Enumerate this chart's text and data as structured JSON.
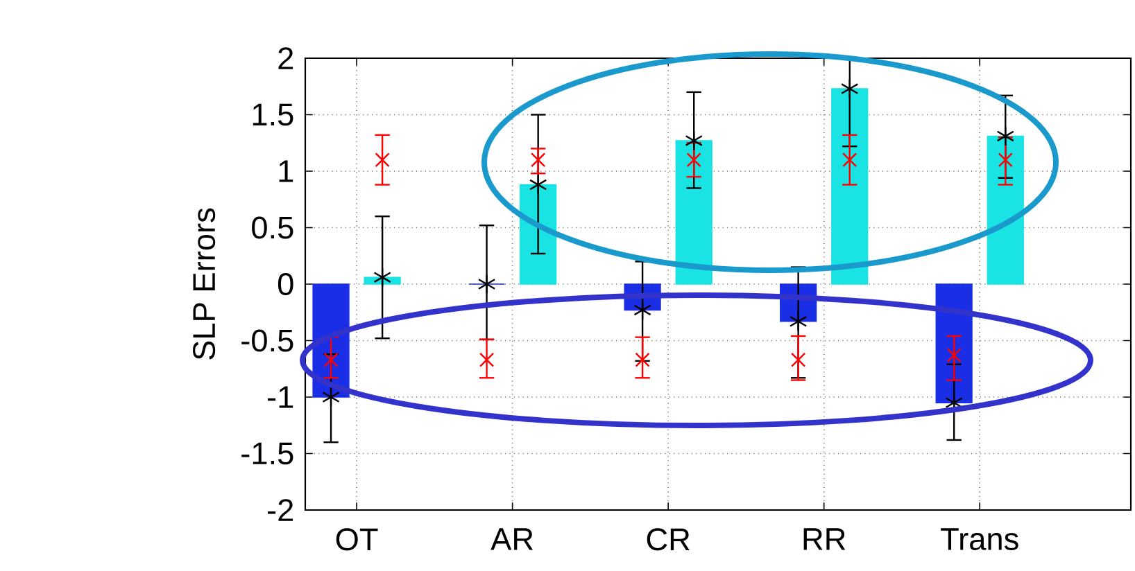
{
  "chart_data": {
    "type": "bar",
    "ylabel": "SLP Errors",
    "categories": [
      "OT",
      "AR",
      "CR",
      "RR",
      "Trans"
    ],
    "ylim": [
      -2,
      2
    ],
    "yticks": [
      -2,
      -1.5,
      -1,
      -0.5,
      0,
      0.5,
      1,
      1.5,
      2
    ],
    "grid": true,
    "series": [
      {
        "color": "#1a2ee6",
        "values": [
          -1.0,
          0,
          -0.23,
          -0.33,
          -1.05
        ]
      },
      {
        "color": "#19e3e3",
        "values": [
          0.06,
          0.88,
          1.27,
          1.73,
          1.31
        ]
      },
      {
        "type": "scatter",
        "color": "#000000",
        "x": [
          "OT",
          "AR",
          "CR",
          "RR",
          "Trans"
        ],
        "values": [
          -1.0,
          0,
          -0.23,
          -0.33,
          -1.05
        ],
        "errors": [
          [
            -1.4,
            -0.62
          ],
          [
            -0.49,
            0.52
          ],
          [
            -0.68,
            0.2
          ],
          [
            -0.83,
            0.15
          ],
          [
            -1.38,
            -0.71
          ]
        ]
      },
      {
        "type": "scatter",
        "color": "#000000",
        "x": [
          "OT",
          "AR",
          "CR",
          "RR",
          "Trans"
        ],
        "values": [
          0.06,
          0.88,
          1.27,
          1.73,
          1.31
        ],
        "errors": [
          [
            -0.48,
            0.6
          ],
          [
            0.27,
            1.5
          ],
          [
            0.85,
            1.7
          ],
          [
            1.22,
            2.0
          ],
          [
            0.94,
            1.67
          ]
        ]
      },
      {
        "type": "scatter",
        "color": "#ff0000",
        "marker": "cross",
        "x": [
          "OT",
          "AR",
          "CR",
          "RR",
          "Trans"
        ],
        "values": [
          -0.67,
          -0.67,
          -0.67,
          -0.67,
          -0.63
        ],
        "errors": [
          [
            -0.83,
            -0.47
          ],
          [
            -0.83,
            -0.49
          ],
          [
            -0.83,
            -0.47
          ],
          [
            -0.85,
            -0.46
          ],
          [
            -0.85,
            -0.46
          ]
        ]
      },
      {
        "type": "scatter",
        "color": "#ff0000",
        "marker": "cross",
        "x": [
          "OT",
          "AR",
          "CR",
          "RR",
          "Trans"
        ],
        "values": [
          1.1,
          1.1,
          1.1,
          1.1,
          1.1
        ],
        "errors": [
          [
            0.88,
            1.32
          ],
          [
            0.98,
            1.2
          ],
          [
            0.95,
            1.25
          ],
          [
            0.88,
            1.32
          ],
          [
            0.88,
            1.3
          ]
        ]
      }
    ]
  }
}
